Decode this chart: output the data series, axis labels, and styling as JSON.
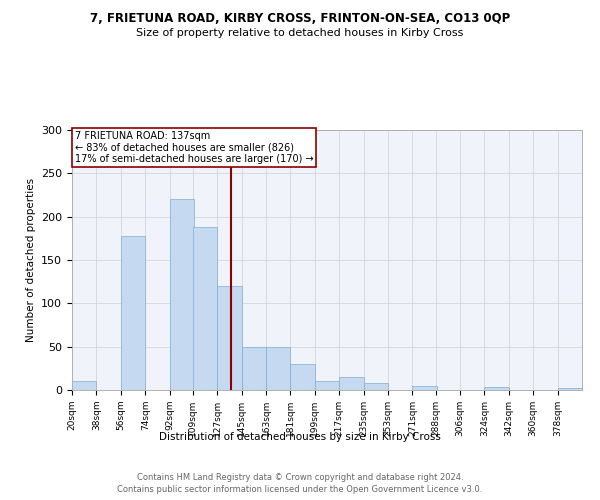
{
  "title1": "7, FRIETUNA ROAD, KIRBY CROSS, FRINTON-ON-SEA, CO13 0QP",
  "title2": "Size of property relative to detached houses in Kirby Cross",
  "xlabel": "Distribution of detached houses by size in Kirby Cross",
  "ylabel": "Number of detached properties",
  "annotation_line1": "7 FRIETUNA ROAD: 137sqm",
  "annotation_line2": "← 83% of detached houses are smaller (826)",
  "annotation_line3": "17% of semi-detached houses are larger (170) →",
  "property_size_sqm": 137,
  "categories": [
    "20sqm",
    "38sqm",
    "56sqm",
    "74sqm",
    "92sqm",
    "109sqm",
    "127sqm",
    "145sqm",
    "163sqm",
    "181sqm",
    "199sqm",
    "217sqm",
    "235sqm",
    "253sqm",
    "271sqm",
    "288sqm",
    "306sqm",
    "324sqm",
    "342sqm",
    "360sqm",
    "378sqm"
  ],
  "bin_edges": [
    20,
    38,
    56,
    74,
    92,
    109,
    127,
    145,
    163,
    181,
    199,
    217,
    235,
    253,
    271,
    288,
    306,
    324,
    342,
    360,
    378
  ],
  "values": [
    10,
    0,
    178,
    0,
    220,
    188,
    120,
    50,
    50,
    30,
    10,
    15,
    8,
    0,
    5,
    0,
    0,
    3,
    0,
    0,
    2
  ],
  "bar_color": "#c5d9f1",
  "bar_edge_color": "#7eadd4",
  "vline_color": "#8b0000",
  "vline_x": 137,
  "annotation_box_color": "#ffffff",
  "annotation_box_edge": "#8b0000",
  "footer": "Contains HM Land Registry data © Crown copyright and database right 2024.\nContains public sector information licensed under the Open Government Licence v3.0.",
  "ylim": [
    0,
    300
  ],
  "yticks": [
    0,
    50,
    100,
    150,
    200,
    250,
    300
  ],
  "fig_width": 6.0,
  "fig_height": 5.0,
  "dpi": 100
}
